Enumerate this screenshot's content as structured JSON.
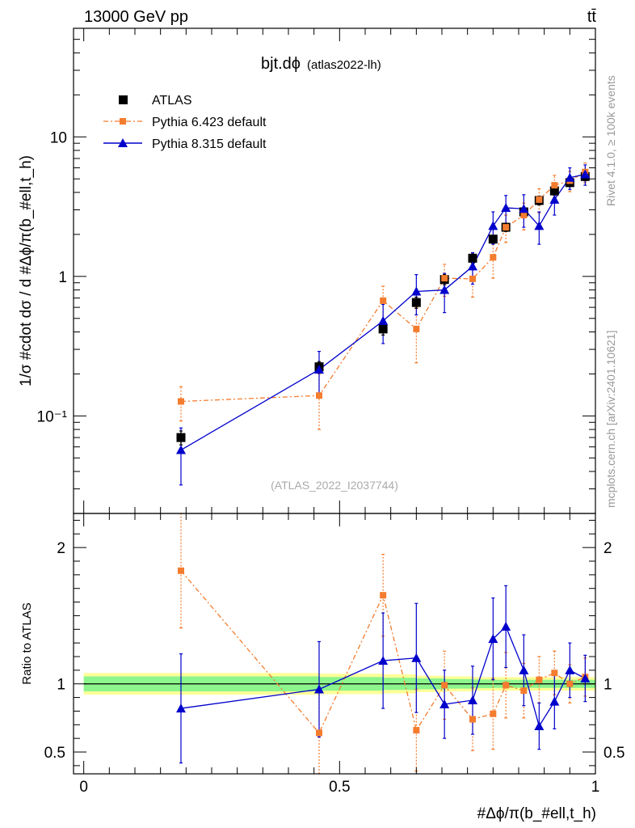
{
  "header": {
    "left": "13000 GeV pp",
    "right": "tt̄"
  },
  "side_labels": {
    "rivet": "Rivet 4.1.0, ≥ 100k events",
    "mcplots": "mcplots.cern.ch [arXiv:2401.10621]"
  },
  "colors": {
    "atlas": "#000000",
    "pythia6": "#f47c2e",
    "pythia8": "#0000cc",
    "band_inner": "#8cf58c",
    "band_outer": "#ffff99"
  },
  "chart_data": [
    {
      "type": "scatter",
      "panel": "main",
      "title": "bjt.dϕ",
      "subtitle": "(atlas2022-lh)",
      "watermark": "(ATLAS_2022_I2037744)",
      "ylabel": "1/σ #cdot dσ / d #Δϕ/π(b_#ell,t_h)",
      "yscale": "log",
      "ylim": [
        0.02,
        60
      ],
      "xlim": [
        -0.02,
        1.0
      ],
      "yticks": [
        {
          "v": 0.1,
          "label": "10⁻¹"
        },
        {
          "v": 1,
          "label": "1"
        },
        {
          "v": 10,
          "label": "10"
        }
      ],
      "legend": [
        "ATLAS",
        "Pythia 6.423 default",
        "Pythia 8.315 default"
      ],
      "x": [
        0.19,
        0.46,
        0.585,
        0.65,
        0.705,
        0.76,
        0.8,
        0.825,
        0.86,
        0.89,
        0.92,
        0.95,
        0.98
      ],
      "series": [
        {
          "name": "ATLAS",
          "values": [
            0.07,
            0.225,
            0.42,
            0.65,
            0.95,
            1.35,
            1.85,
            2.25,
            2.9,
            3.5,
            4.1,
            4.7,
            5.2
          ],
          "errors": [
            0.008,
            0.02,
            0.04,
            0.06,
            0.08,
            0.1,
            0.12,
            0.15,
            0.2,
            0.25,
            0.28,
            0.3,
            0.35
          ]
        },
        {
          "name": "Pythia 6.423 default",
          "values": [
            0.127,
            0.14,
            0.67,
            0.42,
            0.97,
            0.96,
            1.37,
            2.25,
            2.75,
            3.55,
            4.5,
            4.85,
            5.6
          ],
          "errors": [
            0.035,
            0.06,
            0.18,
            0.18,
            0.25,
            0.25,
            0.4,
            0.5,
            0.6,
            0.7,
            0.8,
            0.8,
            0.9
          ]
        },
        {
          "name": "Pythia 8.315 default",
          "values": [
            0.057,
            0.215,
            0.48,
            0.78,
            0.8,
            1.18,
            2.3,
            3.1,
            3.05,
            2.3,
            3.55,
            5.1,
            5.4
          ],
          "errors": [
            0.025,
            0.075,
            0.15,
            0.25,
            0.25,
            0.3,
            0.6,
            0.7,
            0.8,
            0.6,
            0.8,
            0.9,
            0.9
          ]
        }
      ]
    },
    {
      "type": "line",
      "panel": "ratio",
      "ylabel": "Ratio to ATLAS",
      "xlabel": "#Δϕ/π(b_#ell,t_h)",
      "xlim": [
        -0.02,
        1.0
      ],
      "ylim": [
        0.34,
        2.25
      ],
      "xticks": [
        {
          "v": 0,
          "label": "0"
        },
        {
          "v": 0.5,
          "label": "0.5"
        },
        {
          "v": 1,
          "label": "1"
        }
      ],
      "yticks": [
        {
          "v": 0.5,
          "label": "0.5"
        },
        {
          "v": 1,
          "label": "1"
        },
        {
          "v": 2,
          "label": "2"
        }
      ],
      "band_x": [
        0,
        0.46,
        0.585,
        0.65,
        0.705,
        0.76,
        0.8,
        0.825,
        0.86,
        0.89,
        0.92,
        0.95,
        0.98,
        1.0
      ],
      "band_inner": [
        0.055,
        0.05,
        0.045,
        0.04,
        0.035,
        0.032,
        0.03,
        0.03,
        0.03,
        0.03,
        0.03,
        0.03,
        0.03
      ],
      "band_outer": [
        0.08,
        0.075,
        0.07,
        0.06,
        0.055,
        0.05,
        0.05,
        0.05,
        0.05,
        0.05,
        0.05,
        0.05,
        0.05
      ],
      "x": [
        0.19,
        0.46,
        0.585,
        0.65,
        0.705,
        0.76,
        0.8,
        0.825,
        0.86,
        0.89,
        0.92,
        0.95,
        0.98
      ],
      "series": [
        {
          "name": "Pythia 6.423 default",
          "values": [
            1.83,
            0.64,
            1.65,
            0.66,
            0.99,
            0.74,
            0.78,
            0.99,
            0.95,
            1.03,
            1.08,
            1.0,
            1.05
          ],
          "errors": [
            0.42,
            0.3,
            0.3,
            0.3,
            0.25,
            0.23,
            0.26,
            0.24,
            0.2,
            0.17,
            0.16,
            0.14,
            0.14
          ]
        },
        {
          "name": "Pythia 8.315 default",
          "values": [
            0.82,
            0.96,
            1.17,
            1.19,
            0.85,
            0.88,
            1.33,
            1.42,
            1.1,
            0.69,
            0.87,
            1.1,
            1.04
          ],
          "errors": [
            0.4,
            0.35,
            0.35,
            0.4,
            0.25,
            0.25,
            0.3,
            0.3,
            0.26,
            0.17,
            0.2,
            0.2,
            0.17
          ]
        }
      ]
    }
  ]
}
